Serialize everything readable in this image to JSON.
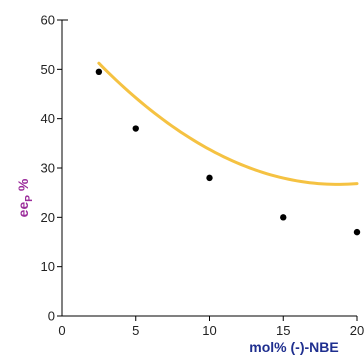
{
  "chart_data": {
    "type": "scatter",
    "xlabel": "mol% (-)-NBE",
    "ylabel_main": "ee",
    "ylabel_sub": "P",
    "ylabel_suffix": "%",
    "xlim": [
      0,
      20
    ],
    "ylim": [
      0,
      60
    ],
    "x_ticks": [
      "0",
      "5",
      "10",
      "15",
      "20"
    ],
    "y_ticks": [
      "0",
      "10",
      "20",
      "30",
      "40",
      "50",
      "60"
    ],
    "points": [
      {
        "x": 2.5,
        "y": 49.5
      },
      {
        "x": 5,
        "y": 38
      },
      {
        "x": 10,
        "y": 28
      },
      {
        "x": 15,
        "y": 20
      },
      {
        "x": 20,
        "y": 17
      }
    ],
    "fit_curve": {
      "a": 0.0936,
      "b": -3.5,
      "c": 59.4
    },
    "colors": {
      "points": "#000000",
      "fit": "#f5c242",
      "axis": "#000000",
      "xlabel": "#1f2f8f",
      "ylabel": "#9b2d9b"
    }
  }
}
